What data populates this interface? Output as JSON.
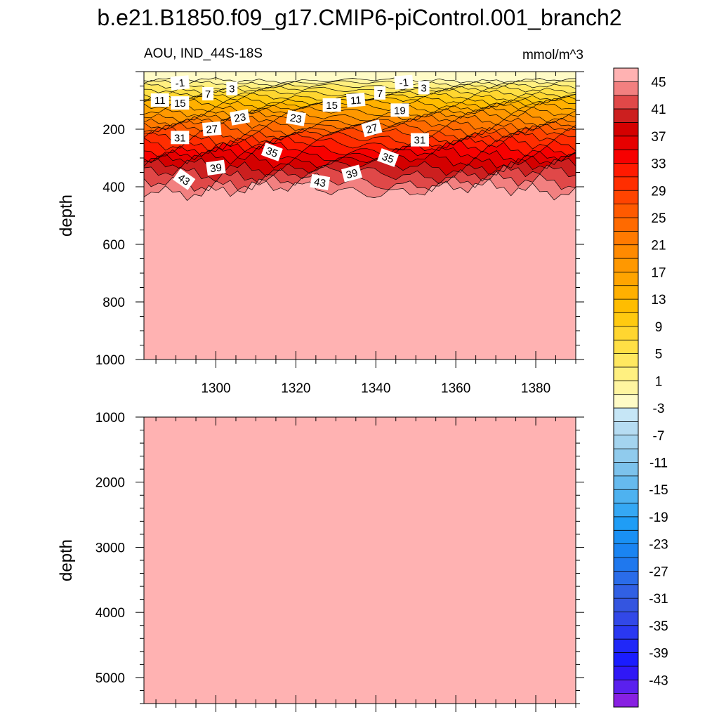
{
  "figure": {
    "title": "b.e21.B1850.f09_g17.CMIP6-piControl.001_branch2",
    "variable": "AOU, IND_44S-18S",
    "units": "mmol/m^3"
  },
  "chart_data": [
    {
      "type": "contour",
      "panel": "upper",
      "xlabel": "",
      "ylabel": "depth",
      "xlim": [
        1282,
        1390
      ],
      "ylim": [
        1000,
        0
      ],
      "xticks": [
        1300,
        1320,
        1340,
        1360,
        1380
      ],
      "yticks": [
        200,
        400,
        600,
        800,
        1000
      ],
      "xtick_labels": [
        "1300",
        "1320",
        "1340",
        "1360",
        "1380"
      ],
      "ytick_labels": [
        "200",
        "400",
        "600",
        "800",
        "1000"
      ],
      "levels": [
        -45,
        -43,
        -41,
        -39,
        -37,
        -35,
        -33,
        -31,
        -29,
        -27,
        -25,
        -23,
        -21,
        -19,
        -17,
        -15,
        -13,
        -11,
        -9,
        -7,
        -5,
        -3,
        -1,
        1,
        3,
        5,
        7,
        9,
        11,
        13,
        15,
        17,
        19,
        21,
        23,
        25,
        27,
        29,
        31,
        33,
        35,
        37,
        39,
        41,
        43,
        45
      ],
      "isoline_depths": [
        {
          "value": -1,
          "depth": 30
        },
        {
          "value": 1,
          "depth": 40
        },
        {
          "value": 3,
          "depth": 52
        },
        {
          "value": 5,
          "depth": 63
        },
        {
          "value": 7,
          "depth": 75
        },
        {
          "value": 9,
          "depth": 88
        },
        {
          "value": 11,
          "depth": 100
        },
        {
          "value": 13,
          "depth": 112
        },
        {
          "value": 15,
          "depth": 125
        },
        {
          "value": 17,
          "depth": 140
        },
        {
          "value": 19,
          "depth": 155
        },
        {
          "value": 21,
          "depth": 170
        },
        {
          "value": 23,
          "depth": 185
        },
        {
          "value": 25,
          "depth": 200
        },
        {
          "value": 27,
          "depth": 215
        },
        {
          "value": 29,
          "depth": 232
        },
        {
          "value": 31,
          "depth": 250
        },
        {
          "value": 33,
          "depth": 268
        },
        {
          "value": 35,
          "depth": 287
        },
        {
          "value": 37,
          "depth": 307
        },
        {
          "value": 39,
          "depth": 330
        },
        {
          "value": 41,
          "depth": 355
        },
        {
          "value": 43,
          "depth": 385
        },
        {
          "value": 45,
          "depth": 410
        }
      ],
      "contour_labels": [
        {
          "text": "-1",
          "x": 1291,
          "depth": 40,
          "angle": -5
        },
        {
          "text": "-1",
          "x": 1347,
          "depth": 38,
          "angle": -5
        },
        {
          "text": "11",
          "x": 1286,
          "depth": 100,
          "angle": 0
        },
        {
          "text": "15",
          "x": 1291,
          "depth": 110,
          "angle": 0
        },
        {
          "text": "7",
          "x": 1298,
          "depth": 78,
          "angle": 0
        },
        {
          "text": "3",
          "x": 1304,
          "depth": 60,
          "angle": 0
        },
        {
          "text": "15",
          "x": 1329,
          "depth": 117,
          "angle": 0
        },
        {
          "text": "11",
          "x": 1335,
          "depth": 100,
          "angle": -5
        },
        {
          "text": "7",
          "x": 1341,
          "depth": 75,
          "angle": 0
        },
        {
          "text": "3",
          "x": 1352,
          "depth": 57,
          "angle": 0
        },
        {
          "text": "19",
          "x": 1346,
          "depth": 135,
          "angle": 0
        },
        {
          "text": "23",
          "x": 1306,
          "depth": 160,
          "angle": -10
        },
        {
          "text": "23",
          "x": 1320,
          "depth": 163,
          "angle": 10
        },
        {
          "text": "27",
          "x": 1299,
          "depth": 200,
          "angle": -5
        },
        {
          "text": "27",
          "x": 1339,
          "depth": 198,
          "angle": -15
        },
        {
          "text": "31",
          "x": 1291,
          "depth": 230,
          "angle": 0
        },
        {
          "text": "31",
          "x": 1351,
          "depth": 238,
          "angle": 0
        },
        {
          "text": "35",
          "x": 1314,
          "depth": 280,
          "angle": 20
        },
        {
          "text": "35",
          "x": 1343,
          "depth": 300,
          "angle": 20
        },
        {
          "text": "39",
          "x": 1300,
          "depth": 335,
          "angle": -8
        },
        {
          "text": "39",
          "x": 1334,
          "depth": 355,
          "angle": -15
        },
        {
          "text": "43",
          "x": 1292,
          "depth": 375,
          "angle": 35
        },
        {
          "text": "43",
          "x": 1326,
          "depth": 385,
          "angle": 10
        }
      ]
    },
    {
      "type": "contour",
      "panel": "lower",
      "xlabel": "",
      "ylabel": "depth",
      "xlim": [
        1282,
        1390
      ],
      "ylim": [
        5400,
        1000
      ],
      "xticks": [
        1300,
        1320,
        1340,
        1360,
        1380
      ],
      "yticks": [
        1000,
        2000,
        3000,
        4000,
        5000
      ],
      "ytick_labels": [
        "1000",
        "2000",
        "3000",
        "4000",
        "5000"
      ],
      "fill_value": 45
    }
  ],
  "colorbar": {
    "labels": [
      "45",
      "41",
      "37",
      "33",
      "29",
      "25",
      "21",
      "17",
      "13",
      "9",
      "5",
      "1",
      "-3",
      "-7",
      "-11",
      "-15",
      "-19",
      "-23",
      "-27",
      "-31",
      "-35",
      "-39",
      "-43"
    ],
    "colors": [
      "#ffb2b2",
      "#f28080",
      "#e04848",
      "#cc1f1f",
      "#d40000",
      "#e60000",
      "#f70000",
      "#ff1a00",
      "#ff2e00",
      "#ff4400",
      "#ff5a00",
      "#ff6a00",
      "#ff7a00",
      "#ff8a00",
      "#ff9800",
      "#ffa400",
      "#ffb000",
      "#ffbd00",
      "#ffca10",
      "#ffd630",
      "#ffe045",
      "#ffe860",
      "#fff080",
      "#fff5a0",
      "#fffbc6",
      "#c6e6f6",
      "#b6dcf2",
      "#a4d4ef",
      "#90cbed",
      "#7cc2ec",
      "#66baee",
      "#4eb2f0",
      "#35a8f4",
      "#1f9df6",
      "#1990f4",
      "#1a84f2",
      "#1f78ee",
      "#2a6ce9",
      "#3160e4",
      "#3455e0",
      "#3248e8",
      "#2a38f2",
      "#2028f8",
      "#1a1cff",
      "#3018f6",
      "#5a20ee",
      "#8820e2"
    ]
  }
}
